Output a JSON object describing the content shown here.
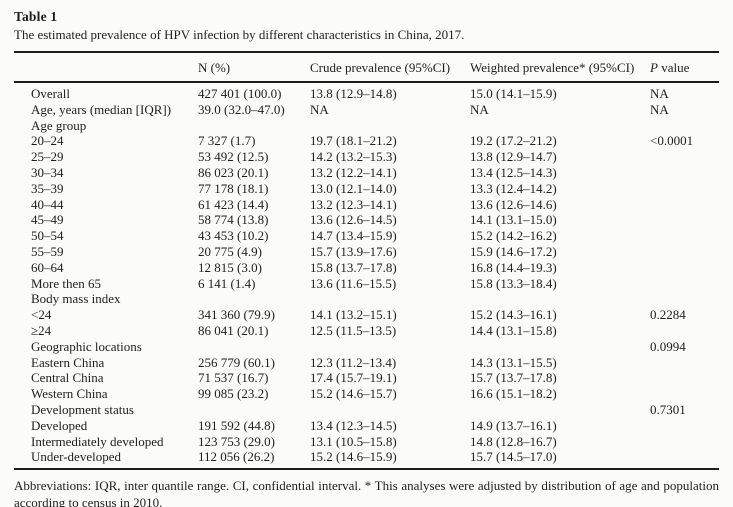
{
  "table": {
    "title": "Table 1",
    "caption": "The estimated prevalence of HPV infection by different characteristics in China, 2017.",
    "columns": {
      "characteristic": "",
      "n": "N (%)",
      "crude": "Crude prevalence (95%CI)",
      "weighted": "Weighted prevalence* (95%CI)",
      "p_italic": "P",
      "p_rest": " value"
    },
    "rows": [
      {
        "label": "Overall",
        "n": "427 401 (100.0)",
        "crude": "13.8 (12.9–14.8)",
        "weighted": "15.0 (14.1–15.9)",
        "p": "NA"
      },
      {
        "label": "Age, years (median [IQR])",
        "n": "39.0 (32.0–47.0)",
        "crude": "NA",
        "weighted": "NA",
        "p": "NA"
      },
      {
        "label": "Age group",
        "n": "",
        "crude": "",
        "weighted": "",
        "p": ""
      },
      {
        "label": "20–24",
        "n": "7 327 (1.7)",
        "crude": "19.7 (18.1–21.2)",
        "weighted": "19.2 (17.2–21.2)",
        "p": "<0.0001"
      },
      {
        "label": "25–29",
        "n": "53 492 (12.5)",
        "crude": "14.2 (13.2–15.3)",
        "weighted": "13.8 (12.9–14.7)",
        "p": ""
      },
      {
        "label": "30–34",
        "n": "86 023 (20.1)",
        "crude": "13.2 (12.2–14.1)",
        "weighted": "13.4 (12.5–14.3)",
        "p": ""
      },
      {
        "label": "35–39",
        "n": "77 178 (18.1)",
        "crude": "13.0 (12.1–14.0)",
        "weighted": "13.3 (12.4–14.2)",
        "p": ""
      },
      {
        "label": "40–44",
        "n": "61 423 (14.4)",
        "crude": "13.2 (12.3–14.1)",
        "weighted": "13.6 (12.6–14.6)",
        "p": ""
      },
      {
        "label": "45–49",
        "n": "58 774 (13.8)",
        "crude": "13.6 (12.6–14.5)",
        "weighted": "14.1 (13.1–15.0)",
        "p": ""
      },
      {
        "label": "50–54",
        "n": "43 453 (10.2)",
        "crude": "14.7 (13.4–15.9)",
        "weighted": "15.2 (14.2–16.2)",
        "p": ""
      },
      {
        "label": "55–59",
        "n": "20 775 (4.9)",
        "crude": "15.7 (13.9–17.6)",
        "weighted": "15.9 (14.6–17.2)",
        "p": ""
      },
      {
        "label": "60–64",
        "n": "12 815 (3.0)",
        "crude": "15.8 (13.7–17.8)",
        "weighted": "16.8 (14.4–19.3)",
        "p": ""
      },
      {
        "label": "More then 65",
        "n": "6 141 (1.4)",
        "crude": "13.6 (11.6–15.5)",
        "weighted": "15.8 (13.3–18.4)",
        "p": ""
      },
      {
        "label": "Body mass index",
        "n": "",
        "crude": "",
        "weighted": "",
        "p": ""
      },
      {
        "label": "<24",
        "n": "341 360 (79.9)",
        "crude": "14.1 (13.2–15.1)",
        "weighted": "15.2 (14.3–16.1)",
        "p": "0.2284"
      },
      {
        "label": "≥24",
        "n": "86 041 (20.1)",
        "crude": "12.5 (11.5–13.5)",
        "weighted": "14.4 (13.1–15.8)",
        "p": ""
      },
      {
        "label": "Geographic locations",
        "n": "",
        "crude": "",
        "weighted": "",
        "p": "0.0994"
      },
      {
        "label": "Eastern China",
        "n": "256 779 (60.1)",
        "crude": "12.3 (11.2–13.4)",
        "weighted": "14.3 (13.1–15.5)",
        "p": ""
      },
      {
        "label": "Central China",
        "n": "71 537 (16.7)",
        "crude": "17.4 (15.7–19.1)",
        "weighted": "15.7 (13.7–17.8)",
        "p": ""
      },
      {
        "label": "Western China",
        "n": "99 085 (23.2)",
        "crude": "15.2 (14.6–15.7)",
        "weighted": "16.6 (15.1–18.2)",
        "p": ""
      },
      {
        "label": "Development status",
        "n": "",
        "crude": "",
        "weighted": "",
        "p": "0.7301"
      },
      {
        "label": "Developed",
        "n": "191 592 (44.8)",
        "crude": "13.4 (12.3–14.5)",
        "weighted": "14.9 (13.7–16.1)",
        "p": ""
      },
      {
        "label": "Intermediately developed",
        "n": "123 753 (29.0)",
        "crude": "13.1 (10.5–15.8)",
        "weighted": "14.8 (12.8–16.7)",
        "p": ""
      },
      {
        "label": "Under-developed",
        "n": "112 056 (26.2)",
        "crude": "15.2 (14.6–15.9)",
        "weighted": "15.7 (14.5–17.0)",
        "p": ""
      }
    ]
  },
  "footnote": {
    "text": "Abbreviations: IQR, inter quantile range. CI, confidential interval. * This analyses were adjusted by distribution of age and population according to census in 2010."
  }
}
